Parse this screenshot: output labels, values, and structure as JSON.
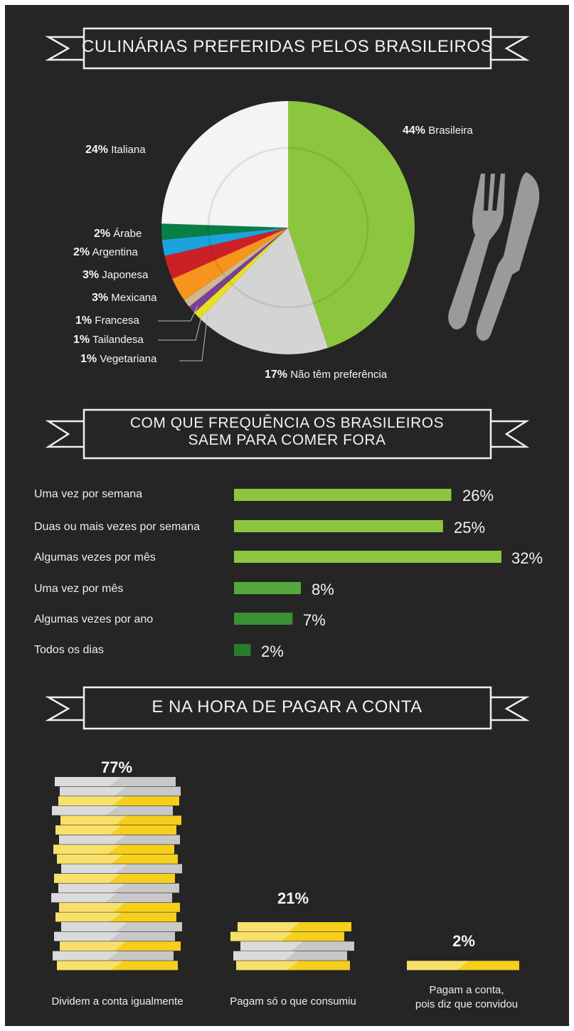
{
  "section1": {
    "title": "CULINÁRIAS PREFERIDAS PELOS BRASILEIROS"
  },
  "section2": {
    "title_line1": "COM QUE FREQUÊNCIA OS BRASILEIROS",
    "title_line2": "SAEM PARA COMER FORA"
  },
  "section3": {
    "title": "E NA HORA DE PAGAR A CONTA"
  },
  "colors": {
    "background": "#252525",
    "brasileira": "#8cc63e",
    "italiana": "#f4f4f4",
    "arabe": "#0a7f45",
    "argentina": "#1aa3dc",
    "japonesa": "#cc2027",
    "mexicana": "#f7941d",
    "francesa": "#cfb78f",
    "tailandesa": "#7b3f98",
    "vegetariana": "#e8e01a",
    "sem_preferencia": "#d4d4d4",
    "coin_yellow": "#f5cf1c",
    "coin_grey": "#c8c8c8"
  },
  "chart_data": [
    {
      "type": "pie",
      "title": "CULINÁRIAS PREFERIDAS PELOS BRASILEIROS",
      "slices": [
        {
          "pct": "44%",
          "name": "Brasileira",
          "value": 44
        },
        {
          "pct": "17%",
          "name": "Não têm preferência",
          "value": 17
        },
        {
          "pct": "1%",
          "name": "Vegetariana",
          "value": 1
        },
        {
          "pct": "1%",
          "name": "Tailandesa",
          "value": 1
        },
        {
          "pct": "1%",
          "name": "Francesa",
          "value": 1
        },
        {
          "pct": "3%",
          "name": "Mexicana",
          "value": 3
        },
        {
          "pct": "3%",
          "name": "Japonesa",
          "value": 3
        },
        {
          "pct": "2%",
          "name": "Argentina",
          "value": 2
        },
        {
          "pct": "2%",
          "name": "Árabe",
          "value": 2
        },
        {
          "pct": "24%",
          "name": "Italiana",
          "value": 24
        }
      ]
    },
    {
      "type": "bar",
      "title": "COM QUE FREQUÊNCIA OS BRASILEIROS SAEM PARA COMER FORA",
      "orientation": "horizontal",
      "categories": [
        "Uma vez por semana",
        "Duas ou mais vezes por semana",
        "Algumas vezes por mês",
        "Uma vez por mês",
        "Algumas vezes por ano",
        "Todos os dias"
      ],
      "values": [
        26,
        25,
        32,
        8,
        7,
        2
      ],
      "labels": [
        "26%",
        "25%",
        "32%",
        "8%",
        "7%",
        "2%"
      ],
      "colors": [
        "#8cc63e",
        "#8cc63e",
        "#8cc63e",
        "#55a83c",
        "#3b8f35",
        "#2a7a31"
      ]
    },
    {
      "type": "bar",
      "title": "E NA HORA DE PAGAR A CONTA",
      "categories": [
        "Dividem a conta igualmente",
        "Pagam só o que consumiu",
        "Pagam a conta, pois diz que convidou"
      ],
      "values": [
        77,
        21,
        2
      ],
      "labels": [
        "77%",
        "21%",
        "2%"
      ]
    }
  ],
  "pay": {
    "label3_line1": "Pagam a conta,",
    "label3_line2": "pois diz que convidou"
  }
}
